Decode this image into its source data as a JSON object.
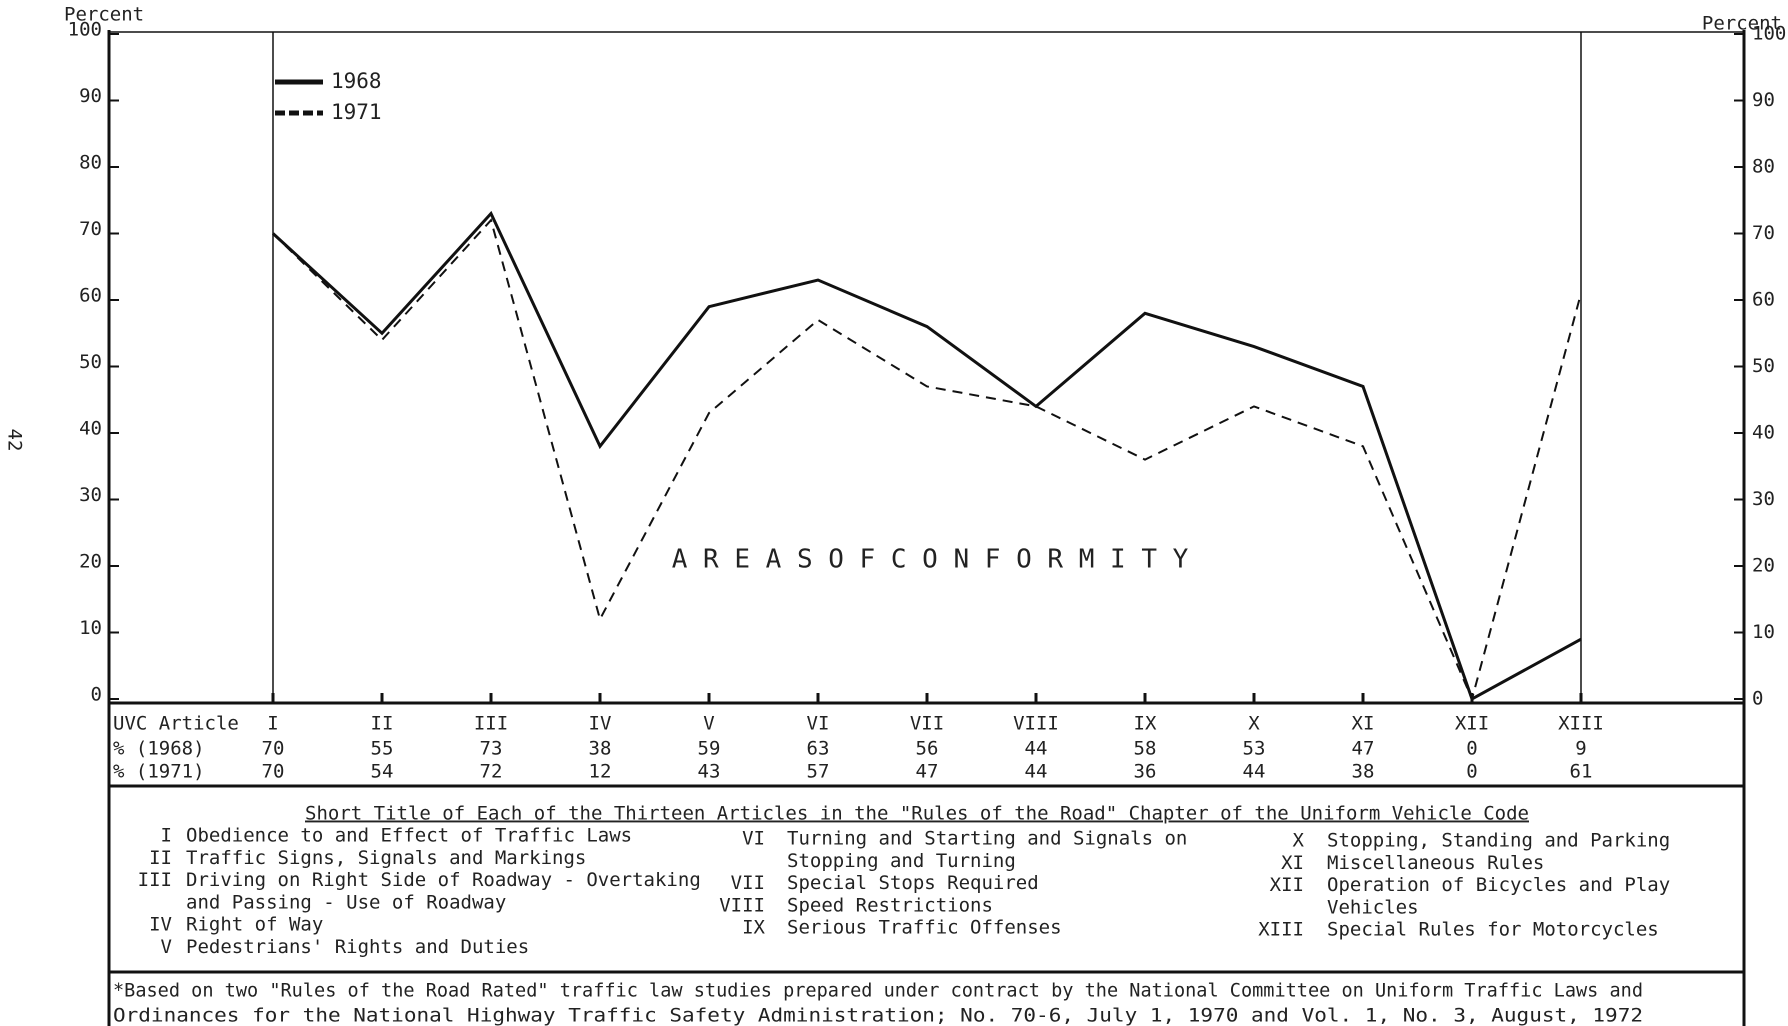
{
  "page_number": "42",
  "chart_data": {
    "type": "line",
    "y_label": "Percent",
    "y2_label": "Percent",
    "annotation": "A R E A S   O F   C O N F O R M I T Y",
    "category_row_label": "UVC Article",
    "categories": [
      "I",
      "II",
      "III",
      "IV",
      "V",
      "VI",
      "VII",
      "VIII",
      "IX",
      "X",
      "XI",
      "XII",
      "XIII"
    ],
    "series": [
      {
        "name": "1968",
        "row_label": "% (1968)",
        "color": "#111111",
        "dash": "solid",
        "values": [
          70,
          55,
          73,
          38,
          59,
          63,
          56,
          44,
          58,
          53,
          47,
          0,
          9
        ]
      },
      {
        "name": "1971",
        "row_label": "% (1971)",
        "color": "#111111",
        "dash": "dashed",
        "values": [
          70,
          54,
          72,
          12,
          43,
          57,
          47,
          44,
          36,
          44,
          38,
          0,
          61
        ]
      }
    ],
    "ylim": [
      0,
      100
    ],
    "yticks": [
      0,
      10,
      20,
      30,
      40,
      50,
      60,
      70,
      80,
      90,
      100
    ],
    "y2lim": [
      0,
      100
    ],
    "y2ticks": [
      0,
      10,
      20,
      30,
      40,
      50,
      60,
      70,
      80,
      90,
      100
    ],
    "legend": "upper left"
  },
  "short_titles": {
    "heading": "Short Title of Each of the Thirteen Articles in the \"Rules of the Road\" Chapter of the Uniform Vehicle Code",
    "columns": [
      [
        {
          "numeral": "I",
          "lines": [
            "Obedience to and Effect of Traffic Laws"
          ]
        },
        {
          "numeral": "II",
          "lines": [
            "Traffic Signs, Signals and Markings"
          ]
        },
        {
          "numeral": "III",
          "lines": [
            "Driving on Right Side of Roadway - Overtaking",
            "and Passing - Use of Roadway"
          ]
        },
        {
          "numeral": "IV",
          "lines": [
            "Right of Way"
          ]
        },
        {
          "numeral": "V",
          "lines": [
            "Pedestrians' Rights and Duties"
          ]
        }
      ],
      [
        {
          "numeral": "VI",
          "lines": [
            "Turning and Starting and Signals on",
            "Stopping and Turning"
          ]
        },
        {
          "numeral": "VII",
          "lines": [
            "Special Stops Required"
          ]
        },
        {
          "numeral": "VIII",
          "lines": [
            "Speed Restrictions"
          ]
        },
        {
          "numeral": "IX",
          "lines": [
            "Serious Traffic Offenses"
          ]
        }
      ],
      [
        {
          "numeral": "X",
          "lines": [
            "Stopping, Standing and Parking"
          ]
        },
        {
          "numeral": "XI",
          "lines": [
            "Miscellaneous Rules"
          ]
        },
        {
          "numeral": "XII",
          "lines": [
            "Operation of Bicycles and Play",
            "Vehicles"
          ]
        },
        {
          "numeral": "XIII",
          "lines": [
            "Special Rules for Motorcycles"
          ]
        }
      ]
    ]
  },
  "footnote": [
    "*Based on two \"Rules of the Road Rated\" traffic law studies prepared under contract by the National Committee on Uniform Traffic Laws and",
    "Ordinances for the National Highway Traffic Safety Administration; No. 70-6, July 1, 1970 and Vol. 1, No. 3, August, 1972"
  ]
}
